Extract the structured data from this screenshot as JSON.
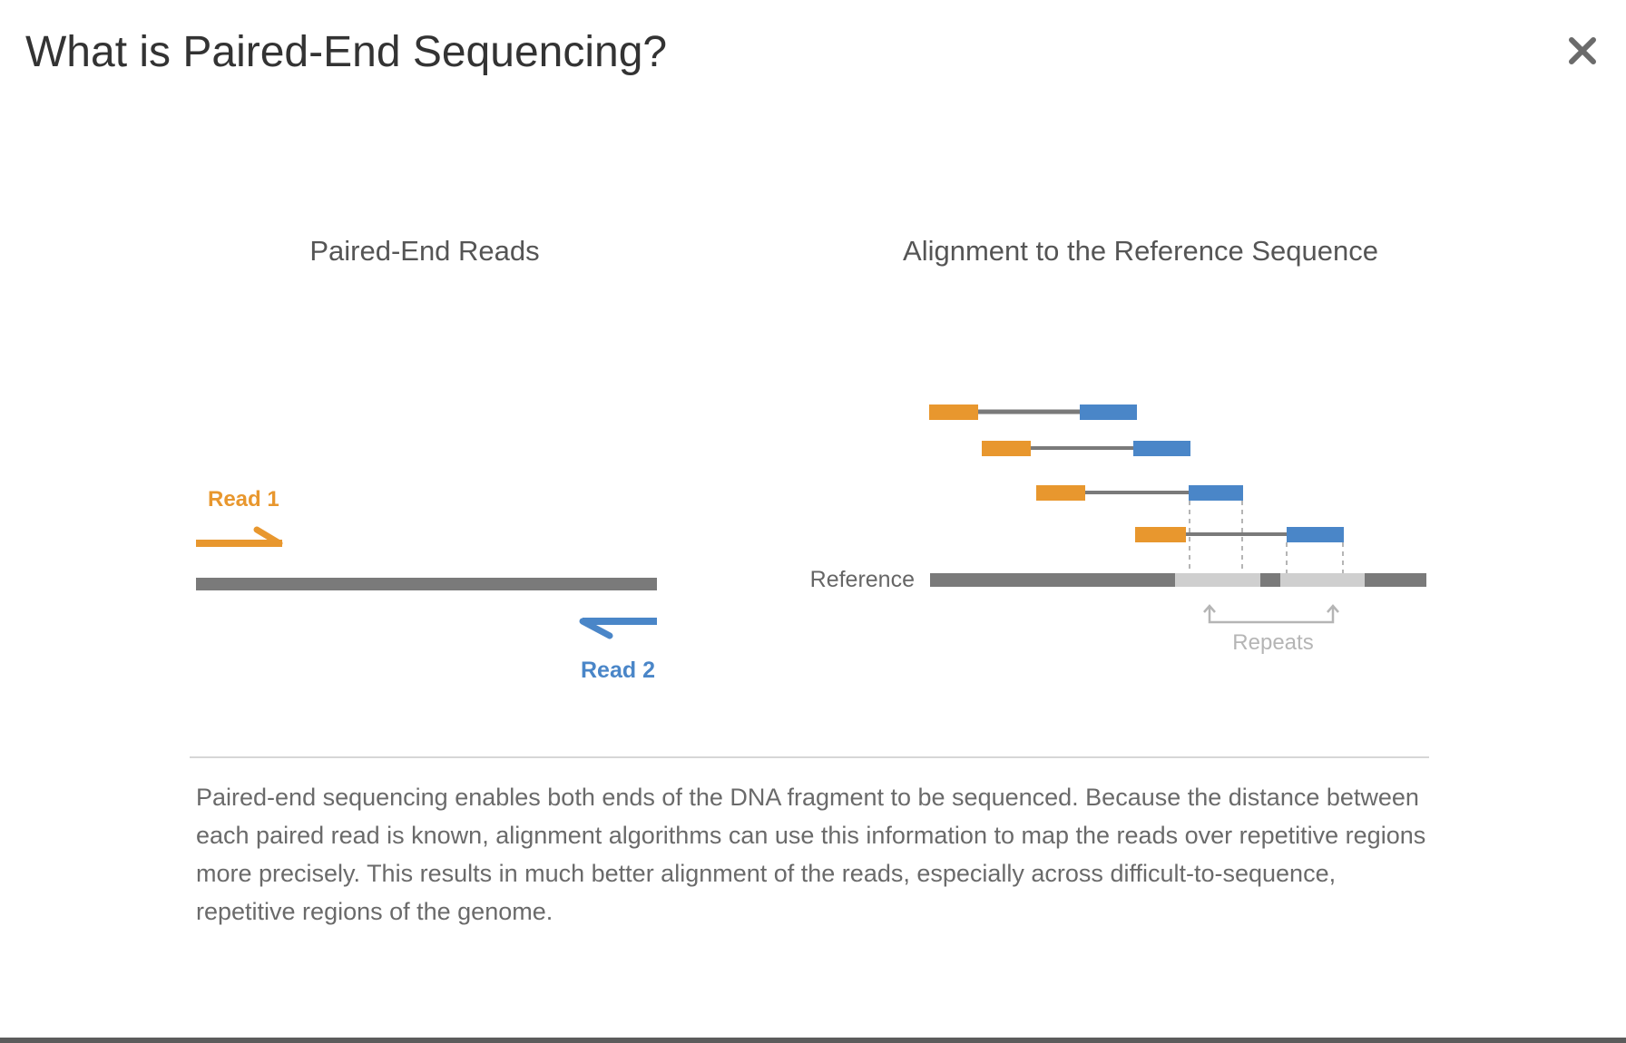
{
  "modal": {
    "title": "What is Paired-End Sequencing?",
    "close_icon": "close-icon"
  },
  "figure": {
    "left_panel": {
      "title": "Paired-End Reads",
      "read1_label": "Read 1",
      "read2_label": "Read 2"
    },
    "right_panel": {
      "title": "Alignment to the Reference Sequence",
      "reference_label": "Reference",
      "repeats_label": "Repeats"
    },
    "colors": {
      "read1": "#e8972e",
      "read2": "#4a86c8",
      "reference": "#7a7a7a",
      "repeat_region": "#cfcfcf",
      "title_text": "#555555"
    }
  },
  "description": "Paired-end sequencing enables both ends of the DNA fragment to be sequenced. Because the distance between each paired read is known, alignment algorithms can use this information to map the reads over repetitive regions more precisely. This results in much better alignment of the reads, especially across difficult-to-sequence, repetitive regions of the genome."
}
